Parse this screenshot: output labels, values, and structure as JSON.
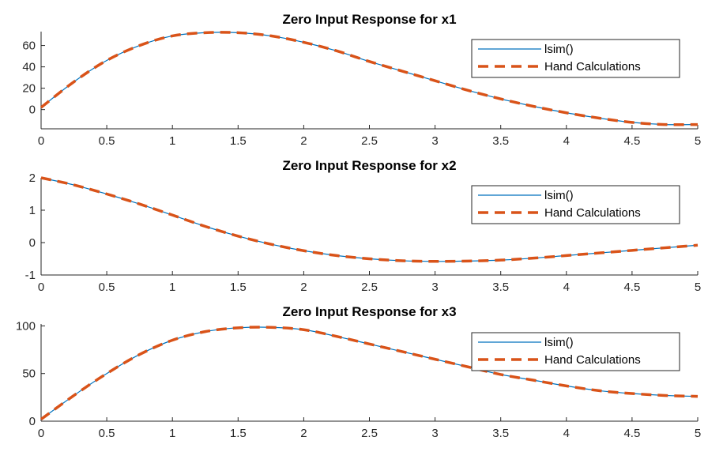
{
  "chart_data": [
    {
      "type": "line",
      "title": "Zero Input Response for x1",
      "xlabel": "",
      "ylabel": "",
      "xlim": [
        0,
        5
      ],
      "ylim": [
        -18,
        73
      ],
      "xticks": [
        0,
        0.5,
        1,
        1.5,
        2,
        2.5,
        3,
        3.5,
        4,
        4.5,
        5
      ],
      "xtick_labels": [
        "0",
        "0.5",
        "1",
        "1.5",
        "2",
        "2.5",
        "3",
        "3.5",
        "4",
        "4.5",
        "5"
      ],
      "yticks": [
        0,
        20,
        40,
        60
      ],
      "ytick_labels": [
        "0",
        "20",
        "40",
        "60"
      ],
      "legend": "top-right",
      "grid": false,
      "x": [
        0,
        0.25,
        0.5,
        0.75,
        1,
        1.25,
        1.5,
        1.75,
        2,
        2.25,
        2.5,
        2.75,
        3,
        3.25,
        3.5,
        3.75,
        4,
        4.25,
        4.5,
        4.75,
        5
      ],
      "series": [
        {
          "name": "lsim()",
          "color": "#0072BD",
          "style": "solid",
          "values": [
            2,
            26,
            46,
            60,
            69,
            72,
            72,
            69,
            63,
            55,
            45,
            36,
            27,
            18,
            10,
            3,
            -3,
            -8,
            -12,
            -14,
            -14
          ]
        },
        {
          "name": "Hand Calculations",
          "color": "#D95319",
          "style": "dashed",
          "values": [
            2,
            26,
            46,
            60,
            69,
            72,
            72,
            69,
            63,
            55,
            45,
            36,
            27,
            18,
            10,
            3,
            -3,
            -8,
            -12,
            -14,
            -14
          ]
        }
      ]
    },
    {
      "type": "line",
      "title": "Zero Input Response for x2",
      "xlabel": "",
      "ylabel": "",
      "xlim": [
        0,
        5
      ],
      "ylim": [
        -1,
        2
      ],
      "xticks": [
        0,
        0.5,
        1,
        1.5,
        2,
        2.5,
        3,
        3.5,
        4,
        4.5,
        5
      ],
      "xtick_labels": [
        "0",
        "0.5",
        "1",
        "1.5",
        "2",
        "2.5",
        "3",
        "3.5",
        "4",
        "4.5",
        "5"
      ],
      "yticks": [
        -1,
        0,
        1,
        2
      ],
      "ytick_labels": [
        "-1",
        "0",
        "1",
        "2"
      ],
      "legend": "top-right",
      "grid": false,
      "x": [
        0,
        0.25,
        0.5,
        0.75,
        1,
        1.25,
        1.5,
        1.75,
        2,
        2.25,
        2.5,
        2.75,
        3,
        3.25,
        3.5,
        3.75,
        4,
        4.25,
        4.5,
        4.75,
        5
      ],
      "series": [
        {
          "name": "lsim()",
          "color": "#0072BD",
          "style": "solid",
          "values": [
            2,
            1.78,
            1.5,
            1.19,
            0.85,
            0.5,
            0.2,
            -0.05,
            -0.25,
            -0.4,
            -0.5,
            -0.56,
            -0.58,
            -0.57,
            -0.54,
            -0.48,
            -0.4,
            -0.32,
            -0.24,
            -0.16,
            -0.08
          ]
        },
        {
          "name": "Hand Calculations",
          "color": "#D95319",
          "style": "dashed",
          "values": [
            2,
            1.78,
            1.5,
            1.19,
            0.85,
            0.5,
            0.2,
            -0.05,
            -0.25,
            -0.4,
            -0.5,
            -0.56,
            -0.58,
            -0.57,
            -0.54,
            -0.48,
            -0.4,
            -0.32,
            -0.24,
            -0.16,
            -0.08
          ]
        }
      ]
    },
    {
      "type": "line",
      "title": "Zero Input Response for x3",
      "xlabel": "",
      "ylabel": "",
      "xlim": [
        0,
        5
      ],
      "ylim": [
        0,
        102
      ],
      "xticks": [
        0,
        0.5,
        1,
        1.5,
        2,
        2.5,
        3,
        3.5,
        4,
        4.5,
        5
      ],
      "xtick_labels": [
        "0",
        "0.5",
        "1",
        "1.5",
        "2",
        "2.5",
        "3",
        "3.5",
        "4",
        "4.5",
        "5"
      ],
      "yticks": [
        0,
        50,
        100
      ],
      "ytick_labels": [
        "0",
        "50",
        "100"
      ],
      "legend": "top-right",
      "grid": false,
      "x": [
        0,
        0.25,
        0.5,
        0.75,
        1,
        1.25,
        1.5,
        1.75,
        2,
        2.25,
        2.5,
        2.75,
        3,
        3.25,
        3.5,
        3.75,
        4,
        4.25,
        4.5,
        4.75,
        5
      ],
      "series": [
        {
          "name": "lsim()",
          "color": "#0072BD",
          "style": "solid",
          "values": [
            2,
            27,
            50,
            70,
            85,
            94,
            98,
            98.5,
            96,
            89,
            81,
            73,
            65,
            57,
            49,
            43,
            37,
            32,
            29,
            27,
            26
          ]
        },
        {
          "name": "Hand Calculations",
          "color": "#D95319",
          "style": "dashed",
          "values": [
            2,
            27,
            50,
            70,
            85,
            94,
            98,
            98.5,
            96,
            89,
            81,
            73,
            65,
            57,
            49,
            43,
            37,
            32,
            29,
            27,
            26
          ]
        }
      ]
    }
  ]
}
